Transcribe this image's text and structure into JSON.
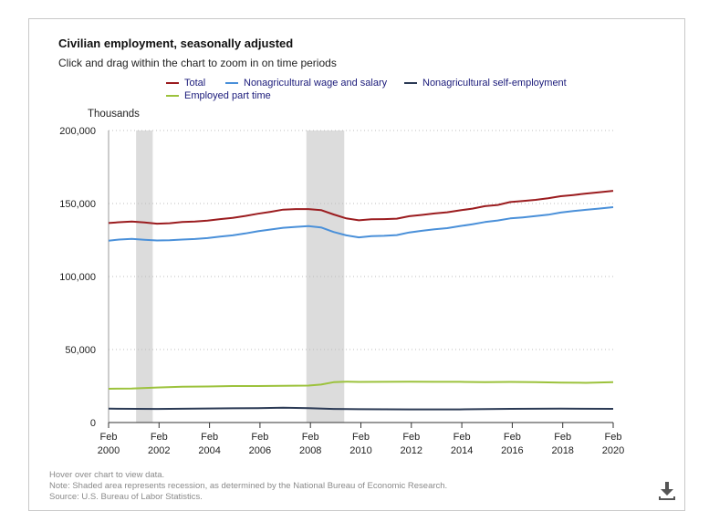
{
  "title": "Civilian employment, seasonally adjusted",
  "subtitle": "Click and drag within the chart to zoom in on time periods",
  "legend": [
    {
      "label": "Total",
      "color": "#9b1c1f"
    },
    {
      "label": "Nonagricultural wage and salary",
      "color": "#4a90d9"
    },
    {
      "label": "Nonagricultural self-employment",
      "color": "#2b3a55"
    },
    {
      "label": "Employed part time",
      "color": "#9cc23c"
    }
  ],
  "footer": {
    "hover": "Hover over chart to view data.",
    "note": "Note: Shaded area represents recession, as determined by the National Bureau of Economic Research.",
    "source": "Source: U.S. Bureau of Labor Statistics."
  },
  "icons": {
    "download": "download-icon"
  },
  "chart_data": {
    "type": "line",
    "ylabel": "Thousands",
    "ylim": [
      0,
      200000
    ],
    "yticks": [
      0,
      50000,
      100000,
      150000,
      200000
    ],
    "ytick_labels": [
      "0",
      "50,000",
      "100,000",
      "150,000",
      "200,000"
    ],
    "xlim": [
      2000.08,
      2020.08
    ],
    "xticks": [
      {
        "x": 2000.08,
        "month": "Feb",
        "year": "2000"
      },
      {
        "x": 2002.08,
        "month": "Feb",
        "year": "2002"
      },
      {
        "x": 2004.08,
        "month": "Feb",
        "year": "2004"
      },
      {
        "x": 2006.08,
        "month": "Feb",
        "year": "2006"
      },
      {
        "x": 2008.08,
        "month": "Feb",
        "year": "2008"
      },
      {
        "x": 2010.08,
        "month": "Feb",
        "year": "2010"
      },
      {
        "x": 2012.08,
        "month": "Feb",
        "year": "2012"
      },
      {
        "x": 2014.08,
        "month": "Feb",
        "year": "2014"
      },
      {
        "x": 2016.08,
        "month": "Feb",
        "year": "2016"
      },
      {
        "x": 2018.08,
        "month": "Feb",
        "year": "2018"
      },
      {
        "x": 2020.08,
        "month": "Feb",
        "year": "2020"
      }
    ],
    "grid": true,
    "legend_position": "top",
    "recessions": [
      [
        2001.17,
        2001.83
      ],
      [
        2007.92,
        2009.42
      ]
    ],
    "series": [
      {
        "name": "Total",
        "color": "#9b1c1f",
        "x": [
          2000.08,
          2000.5,
          2001.0,
          2001.5,
          2002.0,
          2002.5,
          2003.0,
          2003.5,
          2004.0,
          2004.5,
          2005.0,
          2005.5,
          2006.0,
          2006.5,
          2007.0,
          2007.5,
          2008.0,
          2008.5,
          2009.0,
          2009.5,
          2010.0,
          2010.5,
          2011.0,
          2011.5,
          2012.0,
          2012.5,
          2013.0,
          2013.5,
          2014.0,
          2014.5,
          2015.0,
          2015.5,
          2016.0,
          2016.5,
          2017.0,
          2017.5,
          2018.0,
          2018.5,
          2019.0,
          2019.5,
          2020.08
        ],
        "y": [
          136600,
          137200,
          137600,
          137000,
          136200,
          136500,
          137300,
          137600,
          138300,
          139300,
          140200,
          141500,
          143000,
          144300,
          145800,
          146200,
          146200,
          145500,
          142500,
          139800,
          138500,
          139200,
          139300,
          139600,
          141300,
          142200,
          143200,
          144000,
          145300,
          146500,
          148200,
          149000,
          151000,
          151700,
          152500,
          153600,
          155000,
          155800,
          156800,
          157600,
          158700
        ]
      },
      {
        "name": "Nonagricultural wage and salary",
        "color": "#4a90d9",
        "x": [
          2000.08,
          2000.5,
          2001.0,
          2001.5,
          2002.0,
          2002.5,
          2003.0,
          2003.5,
          2004.0,
          2004.5,
          2005.0,
          2005.5,
          2006.0,
          2006.5,
          2007.0,
          2007.5,
          2008.0,
          2008.5,
          2009.0,
          2009.5,
          2010.0,
          2010.5,
          2011.0,
          2011.5,
          2012.0,
          2012.5,
          2013.0,
          2013.5,
          2014.0,
          2014.5,
          2015.0,
          2015.5,
          2016.0,
          2016.5,
          2017.0,
          2017.5,
          2018.0,
          2018.5,
          2019.0,
          2019.5,
          2020.08
        ],
        "y": [
          124500,
          125300,
          125800,
          125200,
          124700,
          124900,
          125300,
          125700,
          126300,
          127300,
          128200,
          129500,
          131000,
          132200,
          133400,
          134000,
          134500,
          133600,
          130500,
          128200,
          126800,
          127700,
          127900,
          128400,
          130200,
          131300,
          132300,
          133100,
          134500,
          135800,
          137300,
          138400,
          139800,
          140500,
          141400,
          142300,
          143800,
          144800,
          145700,
          146500,
          147500
        ]
      },
      {
        "name": "Nonagricultural self-employment",
        "color": "#2b3a55",
        "x": [
          2000.08,
          2002.0,
          2004.0,
          2006.0,
          2007.0,
          2008.0,
          2009.0,
          2010.0,
          2012.0,
          2014.0,
          2016.0,
          2018.0,
          2020.08
        ],
        "y": [
          9500,
          9300,
          9600,
          9900,
          10100,
          9800,
          9300,
          9100,
          9000,
          9000,
          9400,
          9500,
          9400
        ]
      },
      {
        "name": "Employed part time",
        "color": "#9cc23c",
        "x": [
          2000.08,
          2001.0,
          2002.0,
          2003.0,
          2004.0,
          2005.0,
          2006.0,
          2007.0,
          2008.0,
          2008.5,
          2009.0,
          2009.5,
          2010.0,
          2011.0,
          2012.0,
          2013.0,
          2014.0,
          2015.0,
          2016.0,
          2017.0,
          2018.0,
          2019.0,
          2020.08
        ],
        "y": [
          23100,
          23300,
          24000,
          24500,
          24700,
          25000,
          25000,
          25200,
          25300,
          26000,
          27600,
          28000,
          27800,
          27900,
          28000,
          27900,
          27900,
          27600,
          27800,
          27600,
          27400,
          27200,
          27700
        ]
      }
    ]
  }
}
